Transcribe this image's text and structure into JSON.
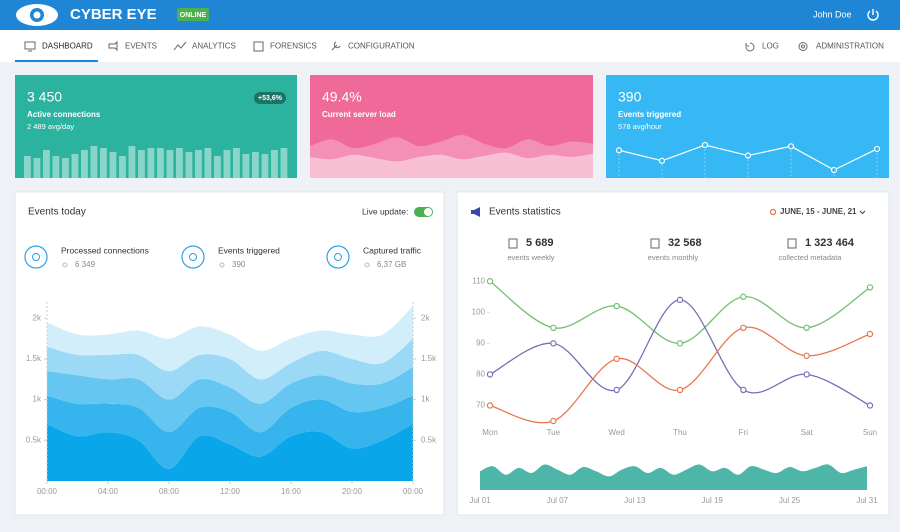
{
  "header": {
    "brand": "CYBER EYE",
    "status": "ONLINE",
    "user": "John Doe"
  },
  "nav": {
    "left": [
      "DASHBOARD",
      "EVENTS",
      "ANALYTICS",
      "FORENSICS",
      "CONFIGURATION"
    ],
    "right": [
      "LOG",
      "ADMINISTRATION"
    ]
  },
  "cards": [
    {
      "value": "3 450",
      "label": "Active connections",
      "sub": "2 489 avg/day",
      "badge": "+53,6%",
      "color": "#2bb39f",
      "chart": {
        "type": "bar",
        "color": "rgba(255,255,255,0.45)",
        "values": [
          22,
          20,
          28,
          22,
          20,
          24,
          28,
          32,
          30,
          26,
          22,
          32,
          28,
          30,
          30,
          28,
          30,
          26,
          28,
          30,
          22,
          28,
          30,
          24,
          26,
          24,
          28,
          30
        ]
      }
    },
    {
      "value": "49.4%",
      "label": "Current server load",
      "color": "#f06a99",
      "chart": {
        "type": "area",
        "series": [
          {
            "color": "#f490b6",
            "values": [
              20,
              26,
              18,
              22,
              28,
              20,
              24,
              30,
              22,
              18,
              26,
              20,
              24,
              22
            ]
          },
          {
            "color": "#f9bfd3",
            "values": [
              10,
              8,
              12,
              9,
              6,
              10,
              12,
              8,
              11,
              14,
              9,
              12,
              10,
              13
            ]
          }
        ]
      }
    },
    {
      "value": "390",
      "label": "Events triggered",
      "sub": "578 avg/hour",
      "color": "#35b8f3",
      "chart": {
        "type": "line",
        "color": "#ffffff",
        "values": [
          28,
          20,
          32,
          24,
          31,
          13,
          29
        ]
      }
    }
  ],
  "events_today": {
    "title": "Events today",
    "live_label": "Live update:",
    "live_update": true,
    "items": [
      {
        "label": "Processed connections",
        "value": "6 349"
      },
      {
        "label": "Events triggered",
        "value": "390"
      },
      {
        "label": "Captured traffic",
        "value": "6,37 GB"
      }
    ],
    "chart": {
      "type": "area",
      "stacked": true,
      "x": [
        0,
        2,
        4,
        6,
        8,
        10,
        12,
        14,
        16,
        18,
        20,
        22,
        24
      ],
      "xlim": [
        0,
        24
      ],
      "xticks": [
        {
          "value": 0,
          "label": "00:00"
        },
        {
          "value": 4,
          "label": "04:00"
        },
        {
          "value": 8,
          "label": "08:00"
        },
        {
          "value": 12,
          "label": "12:00"
        },
        {
          "value": 16,
          "label": "16:00"
        },
        {
          "value": 20,
          "label": "20:00"
        },
        {
          "value": 24,
          "label": "00:00"
        }
      ],
      "ylim": [
        0,
        2200
      ],
      "yticks": [
        {
          "value": 500,
          "label": "0.5k"
        },
        {
          "value": 1000,
          "label": "1k"
        },
        {
          "value": 1500,
          "label": "1.5k"
        },
        {
          "value": 2000,
          "label": "2k"
        }
      ],
      "series": [
        {
          "color": "#0aa6ea",
          "values": [
            700,
            550,
            600,
            500,
            150,
            550,
            450,
            300,
            550,
            600,
            400,
            500,
            700
          ]
        },
        {
          "color": "#36b4ee",
          "values": [
            350,
            400,
            350,
            400,
            450,
            350,
            400,
            300,
            350,
            400,
            450,
            400,
            350
          ]
        },
        {
          "color": "#66c6f2",
          "values": [
            300,
            350,
            300,
            350,
            400,
            350,
            300,
            350,
            300,
            300,
            350,
            300,
            350
          ]
        },
        {
          "color": "#9bd9f6",
          "values": [
            300,
            250,
            300,
            300,
            350,
            300,
            350,
            300,
            250,
            300,
            300,
            250,
            350
          ]
        },
        {
          "color": "#d3eefb",
          "values": [
            300,
            250,
            250,
            300,
            400,
            350,
            300,
            350,
            300,
            250,
            300,
            350,
            400
          ]
        }
      ]
    }
  },
  "events_statistics": {
    "title": "Events statistics",
    "date_range": "JUNE, 15 - JUNE, 21",
    "stats": [
      {
        "value": "5 689",
        "label": "events weekly"
      },
      {
        "value": "32 568",
        "label": "events monthly"
      },
      {
        "value": "1 323 464",
        "label": "collected metadata"
      }
    ],
    "chart": {
      "type": "line",
      "categories": [
        "Mon",
        "Tue",
        "Wed",
        "Thu",
        "Fri",
        "Sat",
        "Sun"
      ],
      "ylim": [
        65,
        112
      ],
      "yticks": [
        70,
        80,
        90,
        100,
        110
      ],
      "series": [
        {
          "color": "#72c06e",
          "values": [
            110,
            95,
            102,
            90,
            105,
            95,
            108
          ]
        },
        {
          "color": "#7272b8",
          "values": [
            80,
            90,
            75,
            104,
            75,
            80,
            70
          ]
        },
        {
          "color": "#e8774c",
          "values": [
            70,
            65,
            85,
            75,
            95,
            86,
            93
          ]
        }
      ]
    },
    "timeline": {
      "type": "area",
      "color": "#4db6a8",
      "categories": [
        "Jul 01",
        null,
        null,
        null,
        null,
        null,
        "Jul 07",
        null,
        null,
        null,
        null,
        null,
        "Jul 13",
        null,
        null,
        null,
        null,
        null,
        "Jul 19",
        null,
        null,
        null,
        null,
        null,
        "Jul 25",
        null,
        null,
        null,
        null,
        null,
        "Jul 31"
      ],
      "values": [
        22,
        28,
        18,
        26,
        20,
        30,
        24,
        18,
        27,
        22,
        16,
        24,
        28,
        20,
        26,
        18,
        24,
        30,
        22,
        26,
        18,
        28,
        24,
        20,
        27,
        22,
        26,
        30,
        20,
        24,
        28
      ]
    }
  }
}
